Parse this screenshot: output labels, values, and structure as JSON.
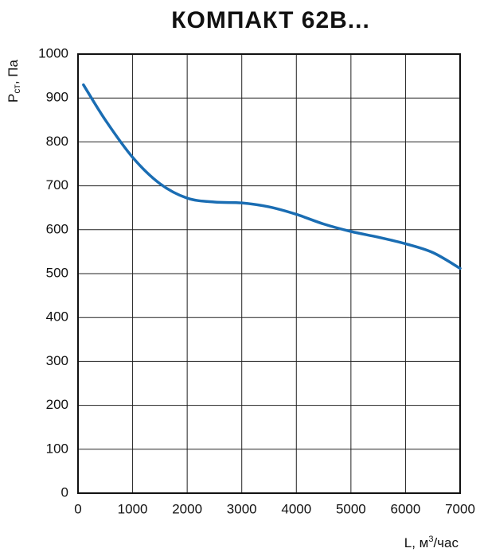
{
  "chart_data": {
    "type": "line",
    "title": "КОМПАКТ 62В...",
    "ylabel": [
      "P",
      "ст",
      ", Па"
    ],
    "xlabel": [
      "L, м",
      "3",
      "/час"
    ],
    "x": [
      100,
      500,
      1000,
      1500,
      2000,
      2500,
      3000,
      3500,
      4000,
      4500,
      5000,
      5500,
      6000,
      6500,
      7000
    ],
    "series": [
      {
        "color": "#1a6db3",
        "values": [
          930,
          850,
          765,
          705,
          672,
          663,
          661,
          652,
          635,
          613,
          596,
          583,
          568,
          548,
          512
        ]
      }
    ],
    "xlim": [
      0,
      7000
    ],
    "xticks": [
      0,
      1000,
      2000,
      3000,
      4000,
      5000,
      6000,
      7000
    ],
    "ylim": [
      0,
      1000
    ],
    "yticks": [
      0,
      100,
      200,
      300,
      400,
      500,
      600,
      700,
      800,
      900,
      1000
    ],
    "grid": true
  }
}
